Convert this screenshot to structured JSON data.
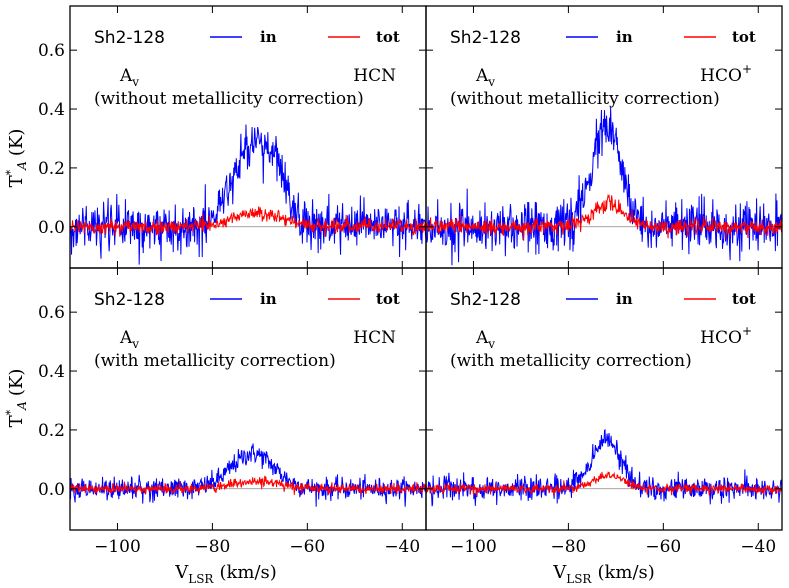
{
  "figure": {
    "ylabel": "T*A (K)",
    "ylabel_main": "T",
    "ylabel_sup": "*",
    "ylabel_sub": "A",
    "ylabel_unit": "(K)",
    "xlabel_main": "V",
    "xlabel_sub": "LSR",
    "xlabel_unit": "(km/s)"
  },
  "colors": {
    "in": "#0000ff",
    "tot": "#ff0000",
    "zero_line": "#888888"
  },
  "chart_data": [
    {
      "type": "line",
      "source": "Sh2-128",
      "tracer": "HCN",
      "tracer_main": "HCN",
      "tracer_sup": "",
      "quantity": "Av",
      "quantity_main": "A",
      "quantity_sub": "v",
      "note": "(without metallicity correction)",
      "xlim": [
        -110,
        -35
      ],
      "ylim": [
        -0.14,
        0.75
      ],
      "xticks": [
        -100,
        -80,
        -60,
        -40
      ],
      "yticks": [
        0.0,
        0.2,
        0.4,
        0.6
      ],
      "ytick_labels": [
        "0.0",
        "0.2",
        "0.4",
        "0.6"
      ],
      "series": [
        {
          "name": "in",
          "label": "in",
          "color": "#0000ff",
          "noise": 0.04,
          "peaks": [
            {
              "center": -71.5,
              "amp": 0.27,
              "sigma": 4.2
            },
            {
              "center": -66.5,
              "amp": 0.1,
              "sigma": 2.0
            }
          ]
        },
        {
          "name": "tot",
          "label": "tot",
          "color": "#ff0000",
          "noise": 0.012,
          "peaks": [
            {
              "center": -71.0,
              "amp": 0.045,
              "sigma": 5.5
            }
          ]
        }
      ]
    },
    {
      "type": "line",
      "source": "Sh2-128",
      "tracer": "HCO+",
      "tracer_main": "HCO",
      "tracer_sup": "+",
      "quantity": "Av",
      "quantity_main": "A",
      "quantity_sub": "v",
      "note": "(without metallicity correction)",
      "xlim": [
        -110,
        -35
      ],
      "ylim": [
        -0.14,
        0.75
      ],
      "xticks": [
        -100,
        -80,
        -60,
        -40
      ],
      "yticks": [
        0.0,
        0.2,
        0.4,
        0.6
      ],
      "ytick_labels": [
        "0.0",
        "0.2",
        "0.4",
        "0.6"
      ],
      "series": [
        {
          "name": "in",
          "label": "in",
          "color": "#0000ff",
          "noise": 0.04,
          "peaks": [
            {
              "center": -72.0,
              "amp": 0.34,
              "sigma": 3.0
            }
          ]
        },
        {
          "name": "tot",
          "label": "tot",
          "color": "#ff0000",
          "noise": 0.013,
          "peaks": [
            {
              "center": -71.5,
              "amp": 0.08,
              "sigma": 3.2
            }
          ]
        }
      ]
    },
    {
      "type": "line",
      "source": "Sh2-128",
      "tracer": "HCN",
      "tracer_main": "HCN",
      "tracer_sup": "",
      "quantity": "Av",
      "quantity_main": "A",
      "quantity_sub": "v",
      "note": "(with metallicity correction)",
      "xlim": [
        -110,
        -35
      ],
      "ylim": [
        -0.14,
        0.75
      ],
      "xticks": [
        -100,
        -80,
        -60,
        -40
      ],
      "yticks": [
        0.0,
        0.2,
        0.4,
        0.6
      ],
      "ytick_labels": [
        "0.0",
        "0.2",
        "0.4",
        "0.6"
      ],
      "series": [
        {
          "name": "in",
          "label": "in",
          "color": "#0000ff",
          "noise": 0.018,
          "peaks": [
            {
              "center": -71.5,
              "amp": 0.12,
              "sigma": 4.5
            }
          ]
        },
        {
          "name": "tot",
          "label": "tot",
          "color": "#ff0000",
          "noise": 0.008,
          "peaks": [
            {
              "center": -71.0,
              "amp": 0.025,
              "sigma": 5.5
            }
          ]
        }
      ]
    },
    {
      "type": "line",
      "source": "Sh2-128",
      "tracer": "HCO+",
      "tracer_main": "HCO",
      "tracer_sup": "+",
      "quantity": "Av",
      "quantity_main": "A",
      "quantity_sub": "v",
      "note": "(with metallicity correction)",
      "xlim": [
        -110,
        -35
      ],
      "ylim": [
        -0.14,
        0.75
      ],
      "xticks": [
        -100,
        -80,
        -60,
        -40
      ],
      "yticks": [
        0.0,
        0.2,
        0.4,
        0.6
      ],
      "ytick_labels": [
        "0.0",
        "0.2",
        "0.4",
        "0.6"
      ],
      "series": [
        {
          "name": "in",
          "label": "in",
          "color": "#0000ff",
          "noise": 0.02,
          "peaks": [
            {
              "center": -72.0,
              "amp": 0.17,
              "sigma": 3.0
            }
          ]
        },
        {
          "name": "tot",
          "label": "tot",
          "color": "#ff0000",
          "noise": 0.008,
          "peaks": [
            {
              "center": -71.5,
              "amp": 0.045,
              "sigma": 3.3
            }
          ]
        }
      ]
    }
  ]
}
